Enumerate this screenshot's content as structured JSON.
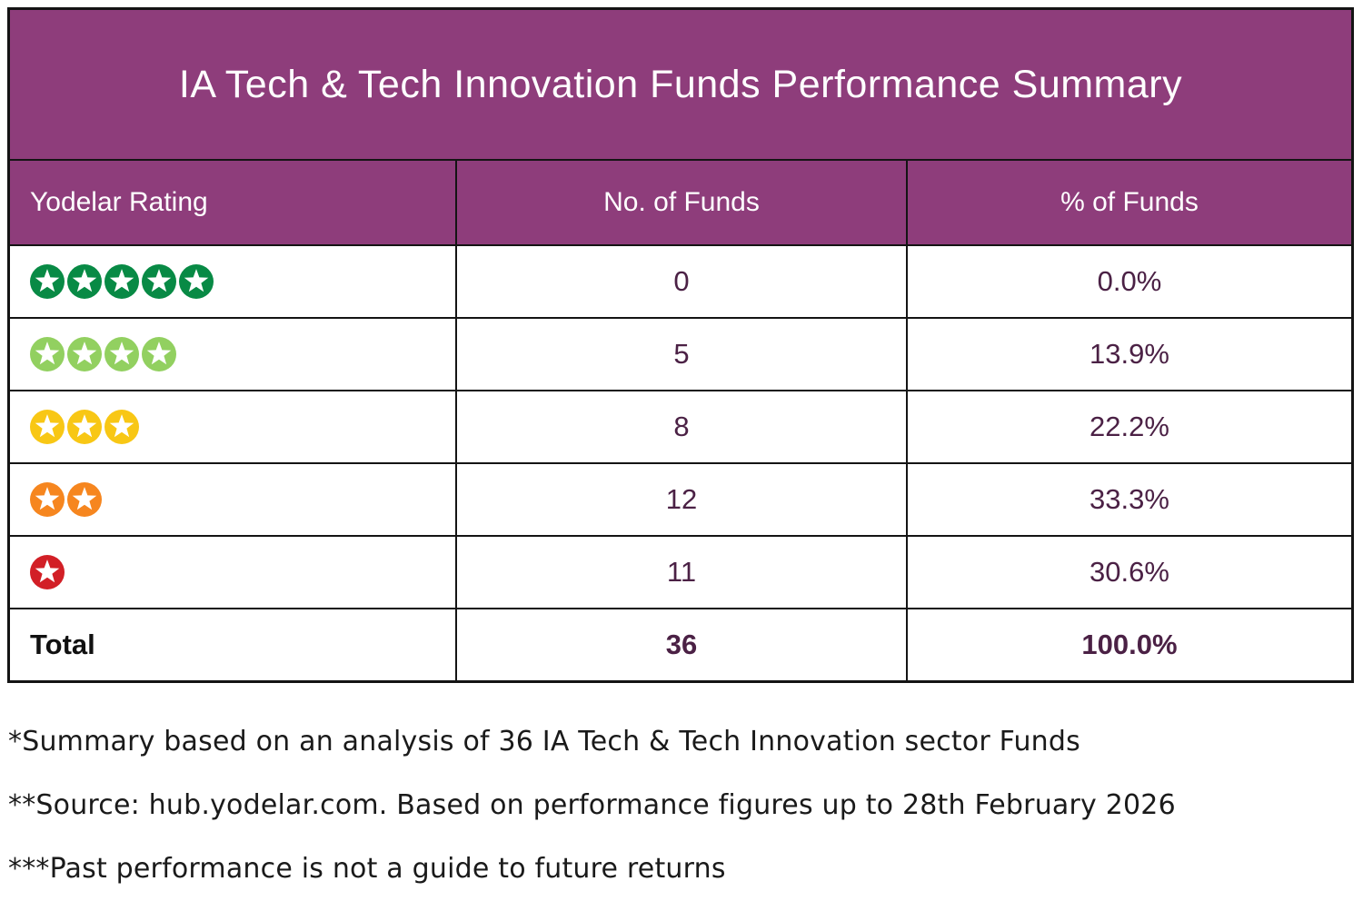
{
  "title": "IA Tech & Tech Innovation Funds Performance Summary",
  "table": {
    "columns": [
      "Yodelar Rating",
      "No. of Funds",
      "% of Funds"
    ],
    "rows": [
      {
        "rating_stars": 5,
        "star_color": "#088A45",
        "no_of_funds": "0",
        "pct_of_funds": "0.0%"
      },
      {
        "rating_stars": 4,
        "star_color": "#92D060",
        "no_of_funds": "5",
        "pct_of_funds": "13.9%"
      },
      {
        "rating_stars": 3,
        "star_color": "#F8C715",
        "no_of_funds": "8",
        "pct_of_funds": "22.2%"
      },
      {
        "rating_stars": 2,
        "star_color": "#F6861F",
        "no_of_funds": "12",
        "pct_of_funds": "33.3%"
      },
      {
        "rating_stars": 1,
        "star_color": "#D21F26",
        "no_of_funds": "11",
        "pct_of_funds": "30.6%"
      }
    ],
    "total": {
      "label": "Total",
      "no_of_funds": "36",
      "pct_of_funds": "100.0%"
    }
  },
  "footnotes": [
    "*Summary based on an analysis of 36 IA Tech & Tech Innovation sector Funds",
    "**Source: hub.yodelar.com. Based on performance figures up to 28th February 2026",
    "***Past performance is not a guide to future returns"
  ],
  "colors": {
    "header_bg": "#8E3D7B",
    "value_text": "#4B2145",
    "border": "#141414"
  },
  "chart_data": {
    "type": "table",
    "title": "IA Tech & Tech Innovation Funds Performance Summary",
    "columns": [
      "Yodelar Rating",
      "No. of Funds",
      "% of Funds"
    ],
    "rows": [
      [
        "5 stars",
        0,
        "0.0%"
      ],
      [
        "4 stars",
        5,
        "13.9%"
      ],
      [
        "3 stars",
        8,
        "22.2%"
      ],
      [
        "2 stars",
        12,
        "33.3%"
      ],
      [
        "1 star",
        11,
        "30.6%"
      ],
      [
        "Total",
        36,
        "100.0%"
      ]
    ]
  }
}
